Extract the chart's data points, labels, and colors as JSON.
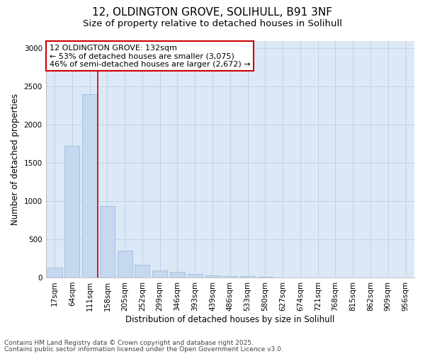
{
  "title_line1": "12, OLDINGTON GROVE, SOLIHULL, B91 3NF",
  "title_line2": "Size of property relative to detached houses in Solihull",
  "xlabel": "Distribution of detached houses by size in Solihull",
  "ylabel": "Number of detached properties",
  "categories": [
    "17sqm",
    "64sqm",
    "111sqm",
    "158sqm",
    "205sqm",
    "252sqm",
    "299sqm",
    "346sqm",
    "393sqm",
    "439sqm",
    "486sqm",
    "533sqm",
    "580sqm",
    "627sqm",
    "674sqm",
    "721sqm",
    "768sqm",
    "815sqm",
    "862sqm",
    "909sqm",
    "956sqm"
  ],
  "values": [
    125,
    1725,
    2400,
    935,
    355,
    165,
    90,
    70,
    50,
    30,
    20,
    15,
    5,
    2,
    0,
    0,
    0,
    0,
    0,
    0,
    0
  ],
  "bar_color": "#c5d8f0",
  "bar_edge_color": "#a0bedd",
  "vline_x": 2.47,
  "vline_color": "#cc0000",
  "annotation_text": "12 OLDINGTON GROVE: 132sqm\n← 53% of detached houses are smaller (3,075)\n46% of semi-detached houses are larger (2,672) →",
  "annotation_box_facecolor": "#ffffff",
  "annotation_box_edgecolor": "#cc0000",
  "ylim": [
    0,
    3100
  ],
  "yticks": [
    0,
    500,
    1000,
    1500,
    2000,
    2500,
    3000
  ],
  "bg_color": "#ffffff",
  "plot_bg_color": "#dce8f5",
  "grid_color": "#b8cfe8",
  "footer_line1": "Contains HM Land Registry data © Crown copyright and database right 2025.",
  "footer_line2": "Contains public sector information licensed under the Open Government Licence v3.0.",
  "title_fontsize": 11,
  "subtitle_fontsize": 9.5,
  "axis_label_fontsize": 8.5,
  "tick_fontsize": 7.5,
  "annotation_fontsize": 8,
  "footer_fontsize": 6.5
}
